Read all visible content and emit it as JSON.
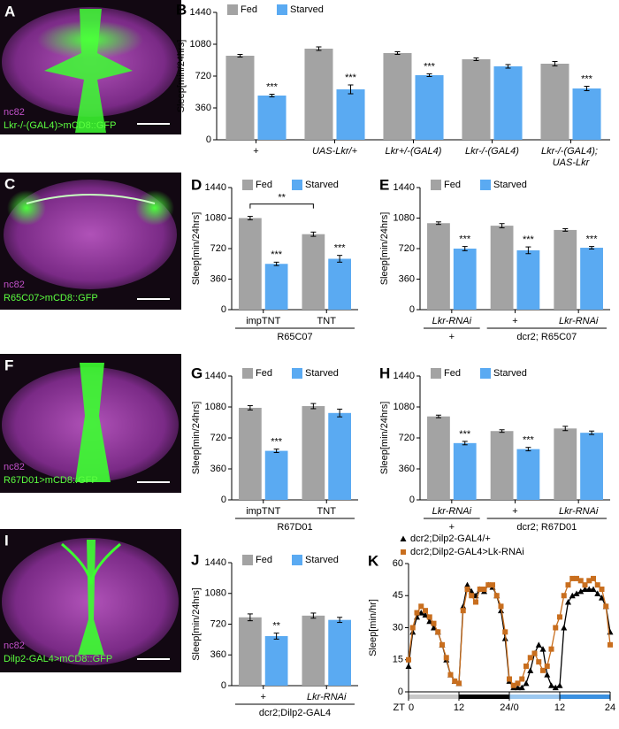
{
  "images": [
    {
      "letter": "A",
      "stain": "nc82",
      "label": "Lkr-/-(GAL4)>mCD8::GFP"
    },
    {
      "letter": "C",
      "stain": "nc82",
      "label": "R65C07>mCD8::GFP"
    },
    {
      "letter": "F",
      "stain": "nc82",
      "label": "R67D01>mCD8::GFP"
    },
    {
      "letter": "I",
      "stain": "nc82",
      "label": "Dilp2-GAL4>mCD8::GFP"
    }
  ],
  "chart_data": [
    {
      "type": "bar",
      "panel": "B",
      "ylabel": "Sleep[min/24hrs]",
      "ylim": [
        0,
        1440
      ],
      "yticks": [
        0,
        360,
        720,
        1080,
        1440
      ],
      "categories": [
        "+",
        "UAS-Lkr/+",
        "Lkr+/-(GAL4)",
        "Lkr-/-(GAL4)",
        "Lkr-/-(GAL4); UAS-Lkr"
      ],
      "series": [
        {
          "name": "Fed",
          "color": "#a3a3a3",
          "values": [
            950,
            1030,
            980,
            910,
            860
          ],
          "errors": [
            15,
            20,
            15,
            15,
            25
          ]
        },
        {
          "name": "Starved",
          "color": "#5aaaf2",
          "values": [
            500,
            570,
            730,
            830,
            580
          ],
          "errors": [
            15,
            50,
            15,
            20,
            25
          ],
          "stars": [
            "***",
            "***",
            "***",
            null,
            "***"
          ]
        }
      ]
    },
    {
      "type": "bar",
      "panel": "D",
      "ylabel": "Sleep[min/24hrs]",
      "ylim": [
        0,
        1440
      ],
      "yticks": [
        0,
        360,
        720,
        1080,
        1440
      ],
      "categories": [
        "impTNT",
        "TNT"
      ],
      "groups": [
        {
          "label": "R65C07",
          "count": 2
        }
      ],
      "comparison": "**",
      "series": [
        {
          "name": "Fed",
          "color": "#a3a3a3",
          "values": [
            1080,
            890
          ],
          "errors": [
            20,
            25
          ]
        },
        {
          "name": "Starved",
          "color": "#5aaaf2",
          "values": [
            540,
            600
          ],
          "errors": [
            20,
            40
          ],
          "stars": [
            "***",
            "***"
          ]
        }
      ]
    },
    {
      "type": "bar",
      "panel": "E",
      "ylabel": "Sleep[min/24hrs]",
      "ylim": [
        0,
        1440
      ],
      "yticks": [
        0,
        360,
        720,
        1080,
        1440
      ],
      "categories": [
        "Lkr-RNAi",
        "+",
        "Lkr-RNAi"
      ],
      "groups": [
        {
          "label": "+",
          "count": 1
        },
        {
          "label": "dcr2; R65C07",
          "count": 2
        }
      ],
      "series": [
        {
          "name": "Fed",
          "color": "#a3a3a3",
          "values": [
            1020,
            990,
            940
          ],
          "errors": [
            15,
            25,
            15
          ]
        },
        {
          "name": "Starved",
          "color": "#5aaaf2",
          "values": [
            720,
            700,
            730
          ],
          "errors": [
            25,
            40,
            15
          ],
          "stars": [
            "***",
            "***",
            "***"
          ]
        }
      ]
    },
    {
      "type": "bar",
      "panel": "G",
      "ylabel": "Sleep[min/24hrs]",
      "ylim": [
        0,
        1440
      ],
      "yticks": [
        0,
        360,
        720,
        1080,
        1440
      ],
      "categories": [
        "impTNT",
        "TNT"
      ],
      "groups": [
        {
          "label": "R67D01",
          "count": 2
        }
      ],
      "series": [
        {
          "name": "Fed",
          "color": "#a3a3a3",
          "values": [
            1070,
            1090
          ],
          "errors": [
            25,
            30
          ]
        },
        {
          "name": "Starved",
          "color": "#5aaaf2",
          "values": [
            570,
            1010
          ],
          "errors": [
            20,
            45
          ],
          "stars": [
            "***",
            null
          ]
        }
      ]
    },
    {
      "type": "bar",
      "panel": "H",
      "ylabel": "Sleep[min/24hrs]",
      "ylim": [
        0,
        1440
      ],
      "yticks": [
        0,
        360,
        720,
        1080,
        1440
      ],
      "categories": [
        "Lkr-RNAi",
        "+",
        "Lkr-RNAi"
      ],
      "groups": [
        {
          "label": "+",
          "count": 1
        },
        {
          "label": "dcr2; R67D01",
          "count": 2
        }
      ],
      "series": [
        {
          "name": "Fed",
          "color": "#a3a3a3",
          "values": [
            970,
            800,
            830
          ],
          "errors": [
            15,
            15,
            25
          ]
        },
        {
          "name": "Starved",
          "color": "#5aaaf2",
          "values": [
            660,
            590,
            780
          ],
          "errors": [
            20,
            20,
            20
          ],
          "stars": [
            "***",
            "***",
            null
          ]
        }
      ]
    },
    {
      "type": "bar",
      "panel": "J",
      "ylabel": "Sleep[min/24hrs]",
      "ylim": [
        0,
        1440
      ],
      "yticks": [
        0,
        360,
        720,
        1080,
        1440
      ],
      "categories": [
        "+",
        "Lkr-RNAi"
      ],
      "groups": [
        {
          "label": "dcr2;Dilp2-GAL4",
          "count": 2
        }
      ],
      "series": [
        {
          "name": "Fed",
          "color": "#a3a3a3",
          "values": [
            800,
            820
          ],
          "errors": [
            40,
            30
          ]
        },
        {
          "name": "Starved",
          "color": "#5aaaf2",
          "values": [
            580,
            770
          ],
          "errors": [
            35,
            30
          ],
          "stars": [
            "**",
            null
          ]
        }
      ]
    },
    {
      "type": "line",
      "panel": "K",
      "ylabel": "Sleep[min/hr]",
      "xlabel": "ZT",
      "xlim": [
        0,
        48
      ],
      "ylim": [
        0,
        60
      ],
      "xticks": [
        0,
        12,
        {
          "value": 24,
          "label": "24/0"
        },
        {
          "value": 36,
          "label": "12"
        },
        {
          "value": 48,
          "label": "24"
        }
      ],
      "yticks": [
        0,
        15,
        30,
        45,
        60
      ],
      "x": [
        0,
        1,
        2,
        3,
        4,
        5,
        6,
        7,
        8,
        9,
        10,
        11,
        12,
        13,
        14,
        15,
        16,
        17,
        18,
        19,
        20,
        21,
        22,
        23,
        24,
        25,
        26,
        27,
        28,
        29,
        30,
        31,
        32,
        33,
        34,
        35,
        36,
        37,
        38,
        39,
        40,
        41,
        42,
        43,
        44,
        45,
        46,
        47,
        48
      ],
      "series": [
        {
          "name": "dcr2;Dilp2-GAL4/+",
          "color": "#000000",
          "marker": "triangle",
          "values": [
            12,
            28,
            35,
            37,
            36,
            33,
            30,
            28,
            22,
            15,
            8,
            5,
            4,
            40,
            50,
            47,
            45,
            48,
            47,
            50,
            49,
            45,
            38,
            25,
            5,
            2,
            2,
            2,
            4,
            10,
            18,
            22,
            20,
            8,
            3,
            2,
            3,
            30,
            42,
            45,
            46,
            47,
            48,
            48,
            48,
            46,
            44,
            40,
            28
          ]
        },
        {
          "name": "dcr2;Dilp2-GAL4>Lk-RNAi",
          "color": "#c86e1e",
          "marker": "square",
          "values": [
            15,
            30,
            37,
            40,
            38,
            35,
            32,
            28,
            22,
            16,
            8,
            5,
            4,
            38,
            48,
            45,
            42,
            48,
            48,
            50,
            50,
            45,
            40,
            28,
            6,
            3,
            4,
            6,
            12,
            16,
            18,
            14,
            10,
            12,
            20,
            30,
            35,
            45,
            50,
            53,
            53,
            52,
            50,
            52,
            53,
            50,
            48,
            40,
            22
          ]
        }
      ]
    }
  ]
}
